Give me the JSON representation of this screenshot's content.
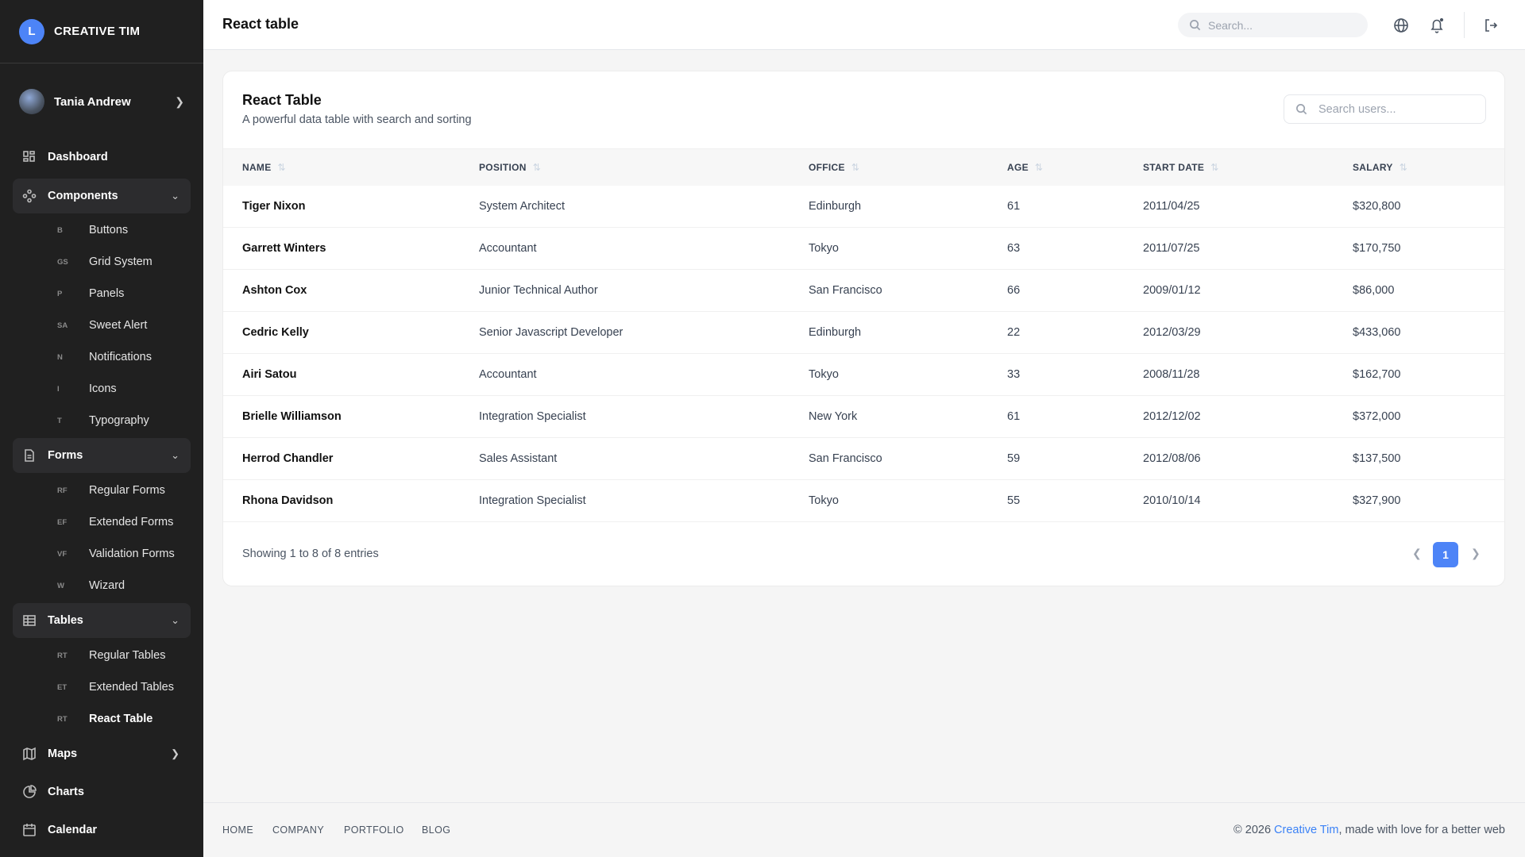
{
  "brand": {
    "logo_letter": "L",
    "name": "CREATIVE TIM",
    "accent": "#4d84f7"
  },
  "user": {
    "name": "Tania Andrew"
  },
  "nav": {
    "dashboard": "Dashboard",
    "components": {
      "label": "Components",
      "items": [
        {
          "ab": "B",
          "label": "Buttons"
        },
        {
          "ab": "GS",
          "label": "Grid System"
        },
        {
          "ab": "P",
          "label": "Panels"
        },
        {
          "ab": "SA",
          "label": "Sweet Alert"
        },
        {
          "ab": "N",
          "label": "Notifications"
        },
        {
          "ab": "I",
          "label": "Icons"
        },
        {
          "ab": "T",
          "label": "Typography"
        }
      ]
    },
    "forms": {
      "label": "Forms",
      "items": [
        {
          "ab": "RF",
          "label": "Regular Forms"
        },
        {
          "ab": "EF",
          "label": "Extended Forms"
        },
        {
          "ab": "VF",
          "label": "Validation Forms"
        },
        {
          "ab": "W",
          "label": "Wizard"
        }
      ]
    },
    "tables": {
      "label": "Tables",
      "items": [
        {
          "ab": "RT",
          "label": "Regular Tables"
        },
        {
          "ab": "ET",
          "label": "Extended Tables"
        },
        {
          "ab": "RT",
          "label": "React Table"
        }
      ]
    },
    "maps": "Maps",
    "charts": "Charts",
    "calendar": "Calendar"
  },
  "header": {
    "title": "React table",
    "search_placeholder": "Search..."
  },
  "card": {
    "title": "React Table",
    "subtitle": "A powerful data table with search and sorting",
    "search_placeholder": "Search users..."
  },
  "table": {
    "columns": [
      "NAME",
      "POSITION",
      "OFFICE",
      "AGE",
      "START DATE",
      "SALARY"
    ],
    "rows": [
      [
        "Tiger Nixon",
        "System Architect",
        "Edinburgh",
        "61",
        "2011/04/25",
        "$320,800"
      ],
      [
        "Garrett Winters",
        "Accountant",
        "Tokyo",
        "63",
        "2011/07/25",
        "$170,750"
      ],
      [
        "Ashton Cox",
        "Junior Technical Author",
        "San Francisco",
        "66",
        "2009/01/12",
        "$86,000"
      ],
      [
        "Cedric Kelly",
        "Senior Javascript Developer",
        "Edinburgh",
        "22",
        "2012/03/29",
        "$433,060"
      ],
      [
        "Airi Satou",
        "Accountant",
        "Tokyo",
        "33",
        "2008/11/28",
        "$162,700"
      ],
      [
        "Brielle Williamson",
        "Integration Specialist",
        "New York",
        "61",
        "2012/12/02",
        "$372,000"
      ],
      [
        "Herrod Chandler",
        "Sales Assistant",
        "San Francisco",
        "59",
        "2012/08/06",
        "$137,500"
      ],
      [
        "Rhona Davidson",
        "Integration Specialist",
        "Tokyo",
        "55",
        "2010/10/14",
        "$327,900"
      ]
    ],
    "showing": "Showing 1 to 8 of 8 entries",
    "page": "1"
  },
  "footer": {
    "links": [
      "HOME",
      "COMPANY",
      "PORTFOLIO",
      "BLOG"
    ],
    "copy_prefix": "© 2026 ",
    "copy_link": "Creative Tim",
    "copy_suffix": ", made with love for a better web"
  }
}
